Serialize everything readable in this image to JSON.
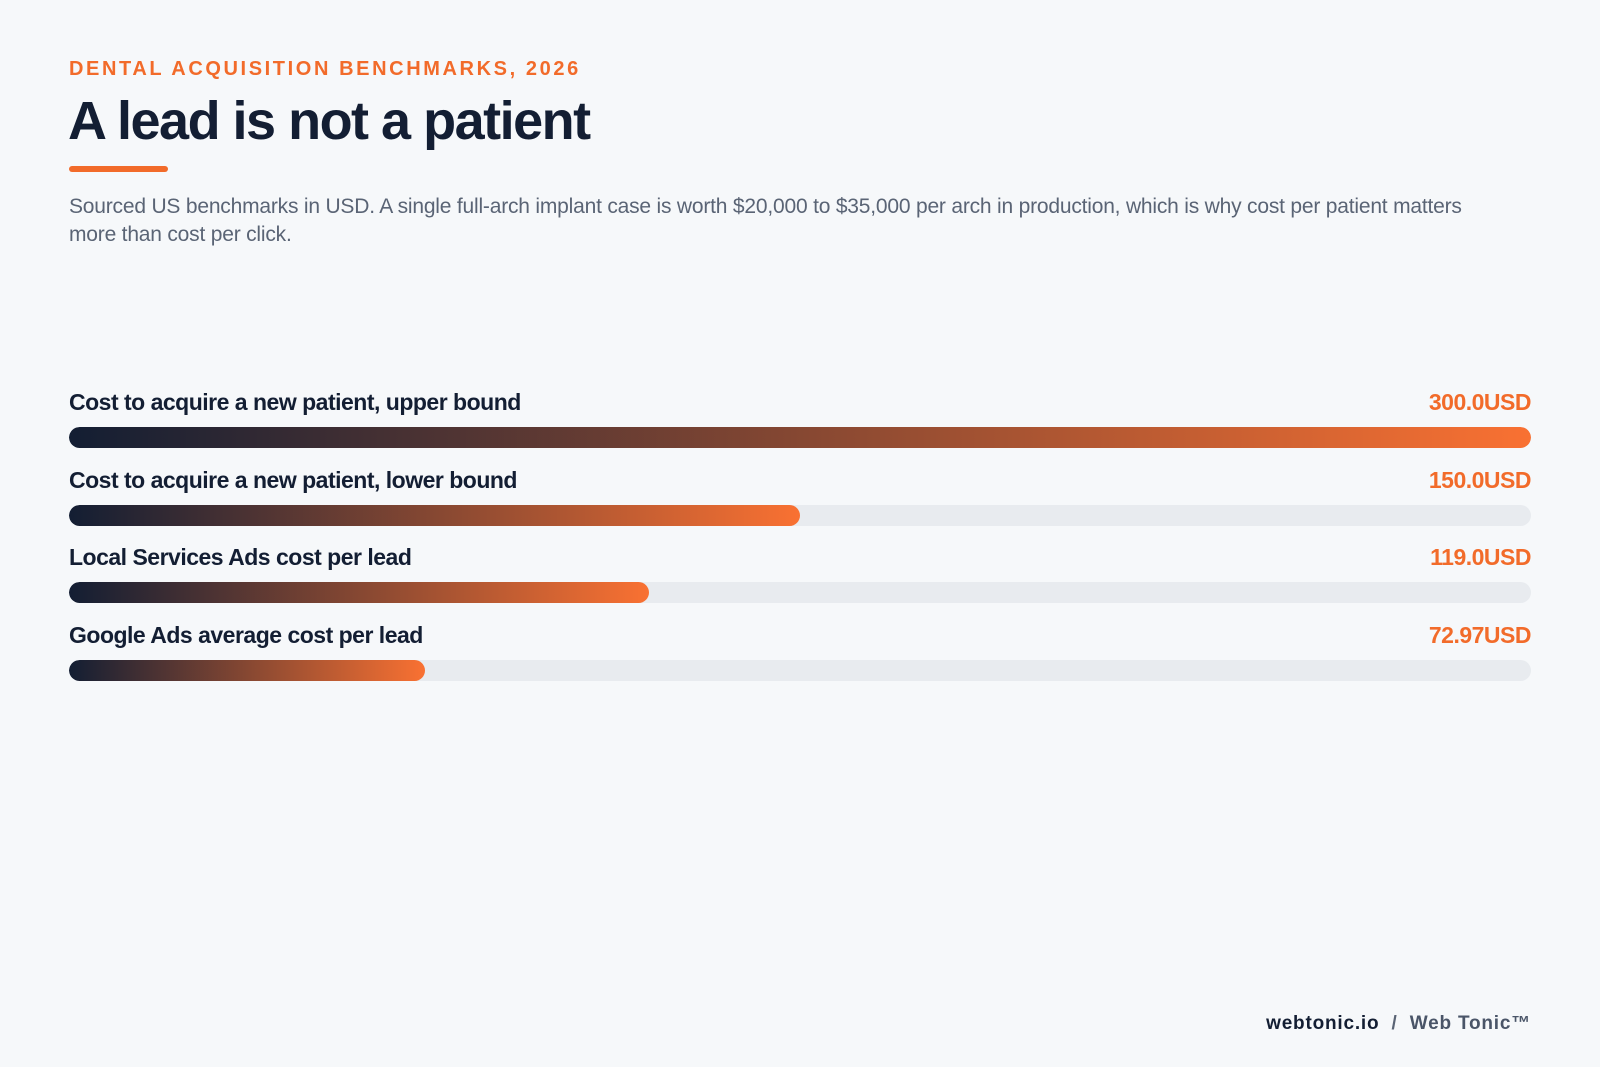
{
  "eyebrow": "DENTAL ACQUISITION BENCHMARKS, 2026",
  "title": "A lead is not a patient",
  "subtitle": "Sourced US benchmarks in USD. A single full-arch implant case is worth $20,000 to $35,000 per arch in production, which is why cost per patient matters more than cost per click.",
  "colors": {
    "accent": "#f26b2a",
    "navy": "#131e33",
    "track": "#e8ebef",
    "background": "#f6f8fa"
  },
  "chart_data": {
    "type": "bar",
    "orientation": "horizontal",
    "unit": "USD",
    "xlim": [
      0,
      300
    ],
    "categories": [
      "Cost to acquire a new patient, upper bound",
      "Cost to acquire a new patient, lower bound",
      "Local Services Ads cost per lead",
      "Google Ads average cost per lead"
    ],
    "values": [
      300.0,
      150.0,
      119.0,
      72.97
    ],
    "value_labels": [
      "300.0USD",
      "150.0USD",
      "119.0USD",
      "72.97USD"
    ]
  },
  "footer": {
    "domain": "webtonic.io",
    "separator": "/",
    "brand": "Web Tonic™"
  }
}
